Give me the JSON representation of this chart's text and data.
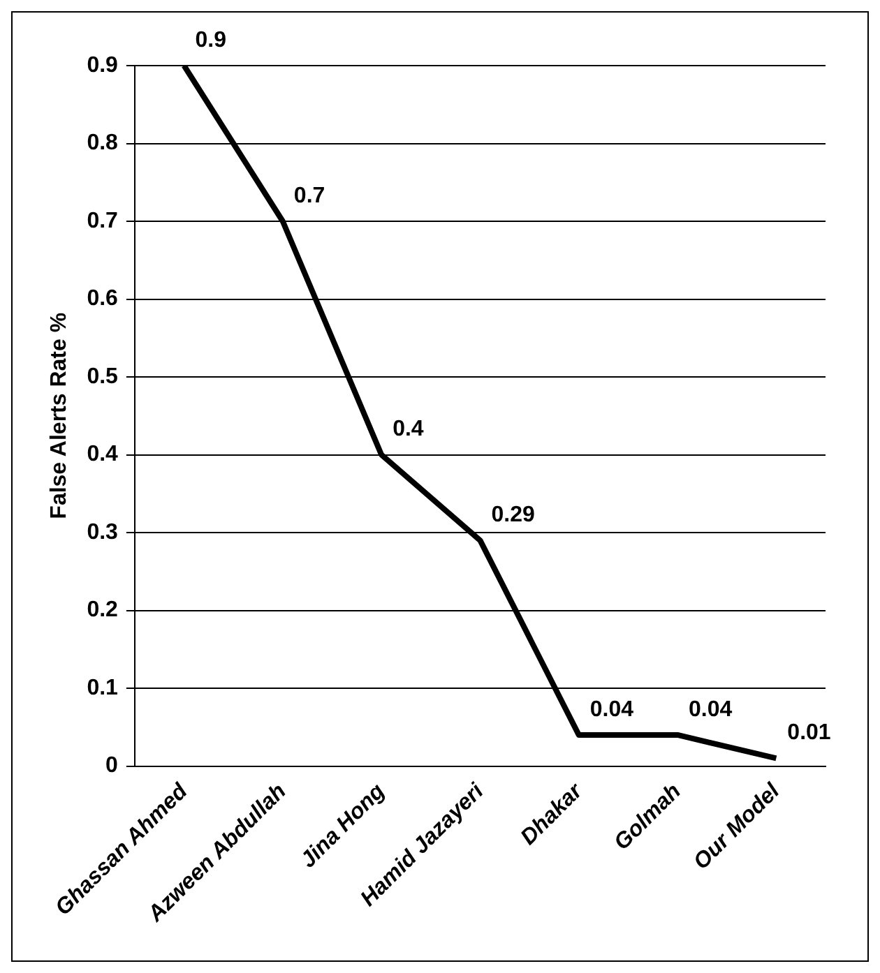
{
  "chart_data": {
    "type": "line",
    "ylabel": "False Alerts Rate %",
    "categories": [
      "Ghassan Ahmed",
      "Azween Abdullah",
      "Jina Hong",
      "Hamid Jazayeri",
      "Dhakar",
      "Golmah",
      "Our Model"
    ],
    "series": [
      {
        "color": "#000000",
        "values": [
          0.9,
          0.7,
          0.4,
          0.29,
          0.04,
          0.04,
          0.01
        ]
      }
    ],
    "ylim": [
      0,
      0.9
    ],
    "yticks": [
      0,
      0.1,
      0.2,
      0.3,
      0.4,
      0.5,
      0.6,
      0.7,
      0.8,
      0.9
    ],
    "grid": "y",
    "legend": false,
    "marker": "none",
    "line_style": "solid",
    "data_labels": true
  }
}
